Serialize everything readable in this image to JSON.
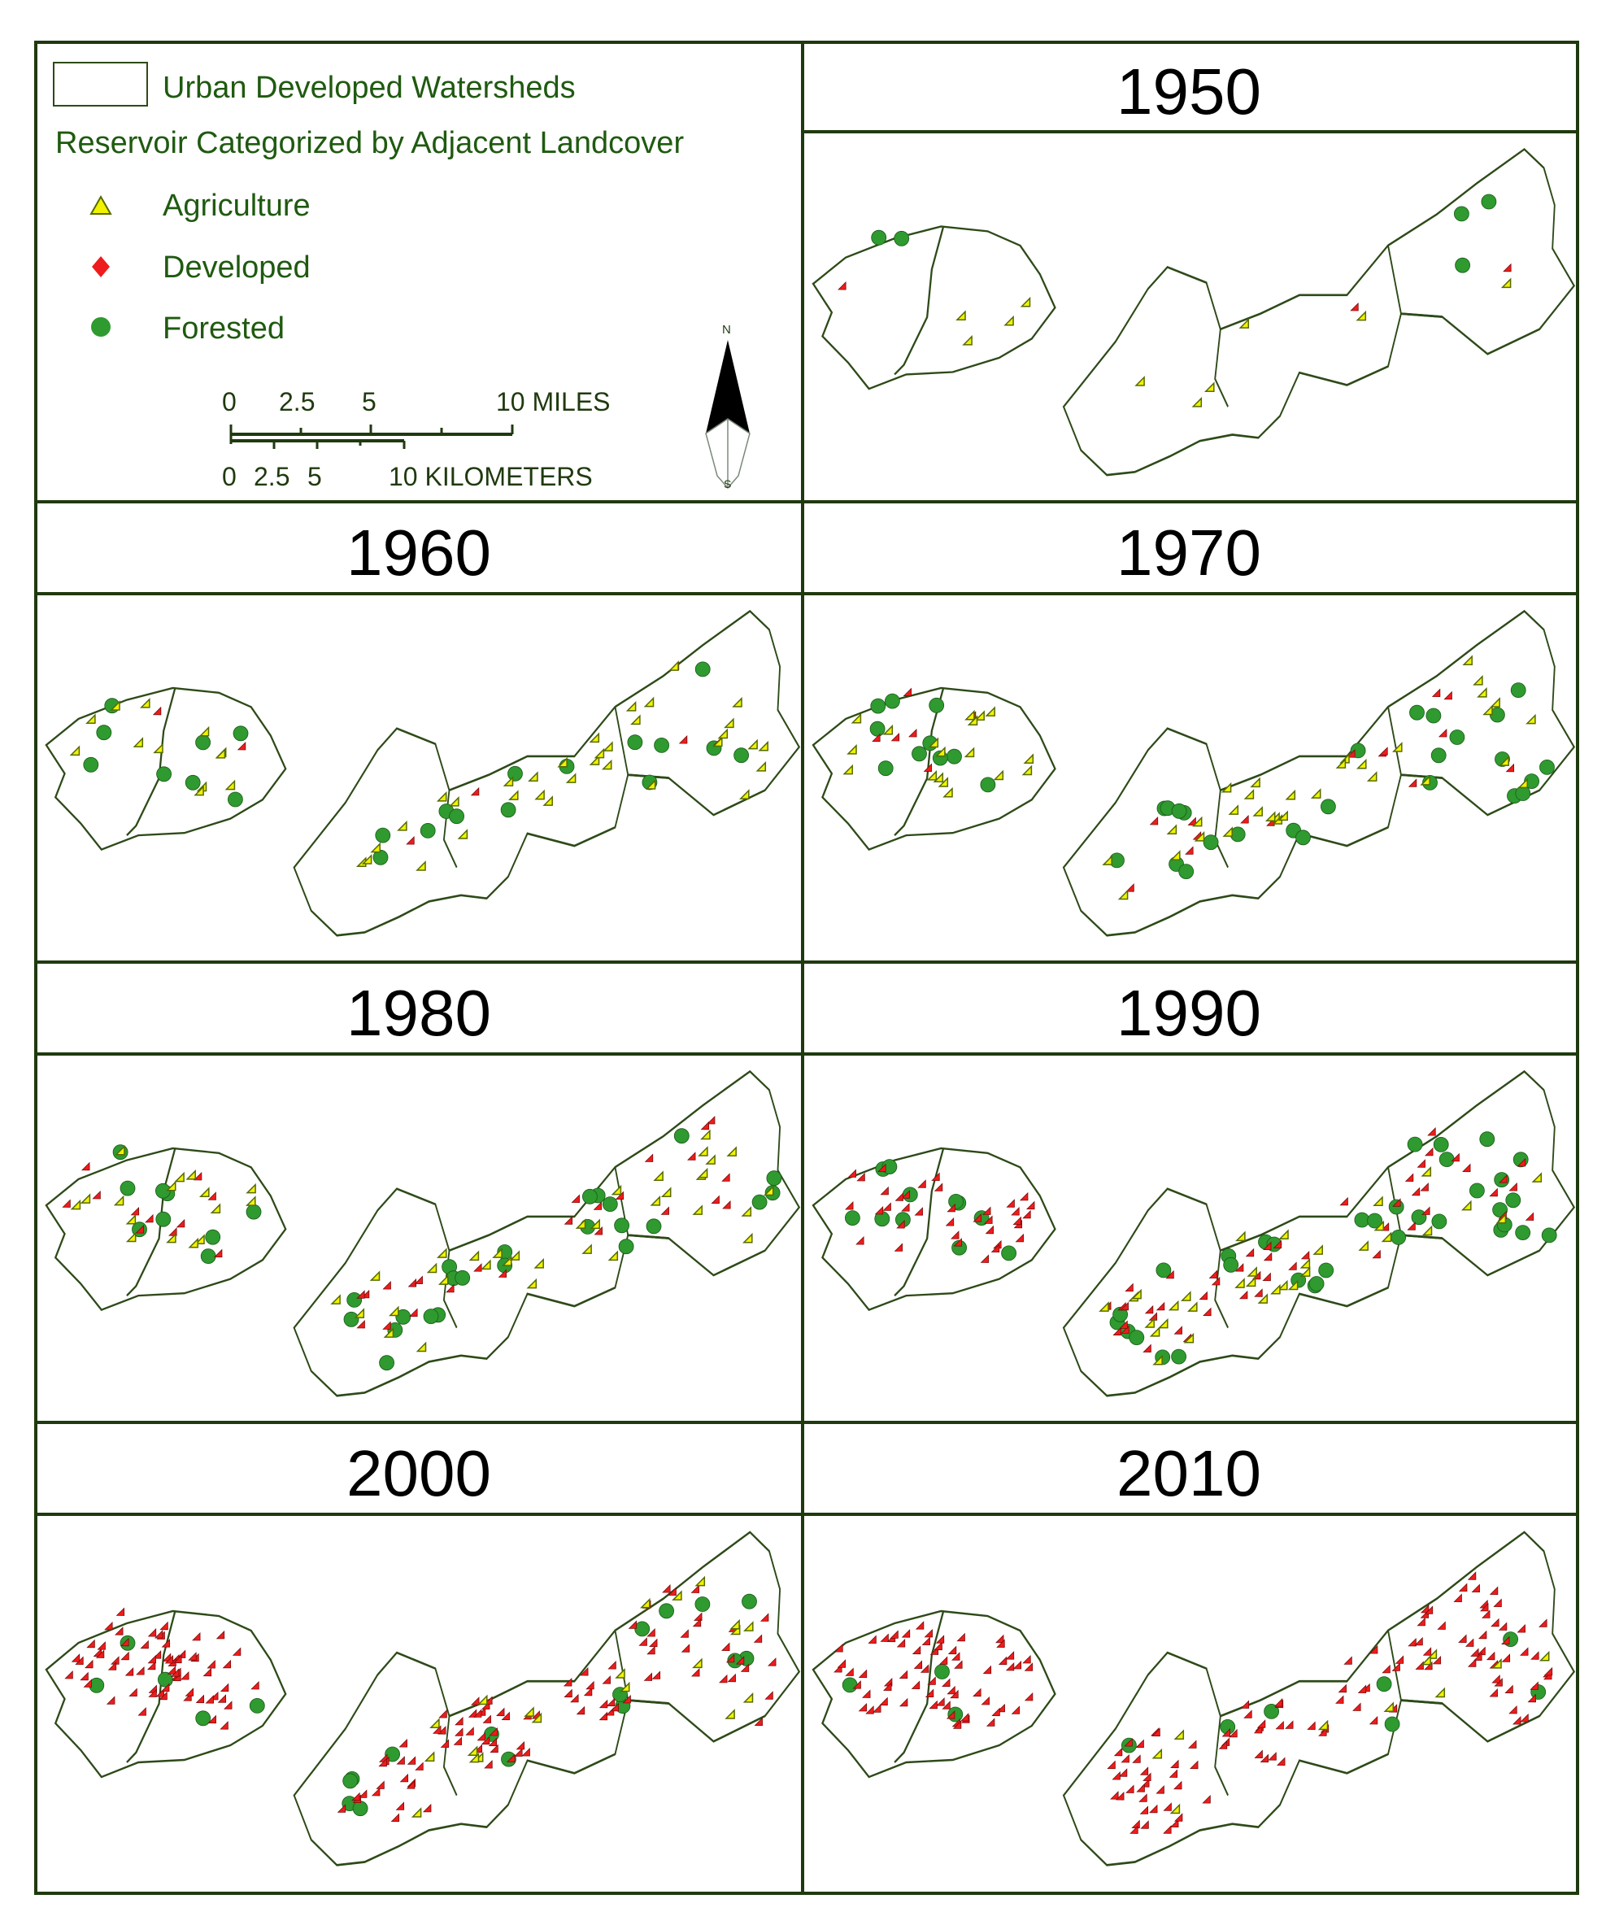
{
  "legend": {
    "watershed_label": "Urban Developed Watersheds",
    "reservoir_heading": "Reservoir Categorized by Adjacent Landcover",
    "categories": [
      {
        "label": "Agriculture",
        "symbol": "triangle",
        "color": "#f2f200"
      },
      {
        "label": "Developed",
        "symbol": "diamond",
        "color": "#ee1c1c"
      },
      {
        "label": "Forested",
        "symbol": "circle",
        "color": "#2f9a2f"
      }
    ],
    "miles_ticks": [
      "0",
      "2.5",
      "5",
      "10 MILES"
    ],
    "km_ticks": [
      "0",
      "2.5",
      "5",
      "10 KILOMETERS"
    ],
    "north_label": "N",
    "south_label": "S"
  },
  "panels": [
    {
      "year": "1950",
      "counts": {
        "agriculture": 10,
        "developed": 3,
        "forested": 5
      }
    },
    {
      "year": "1960",
      "counts": {
        "agriculture": 45,
        "developed": 7,
        "forested": 22
      }
    },
    {
      "year": "1970",
      "counts": {
        "agriculture": 50,
        "developed": 22,
        "forested": 35
      }
    },
    {
      "year": "1980",
      "counts": {
        "agriculture": 50,
        "developed": 35,
        "forested": 32
      }
    },
    {
      "year": "1990",
      "counts": {
        "agriculture": 32,
        "developed": 85,
        "forested": 45
      }
    },
    {
      "year": "2000",
      "counts": {
        "agriculture": 20,
        "developed": 160,
        "forested": 20
      }
    },
    {
      "year": "2010",
      "counts": {
        "agriculture": 10,
        "developed": 180,
        "forested": 10
      }
    }
  ],
  "colors": {
    "frame": "#1f3a0f",
    "outline": "#2d4a18",
    "title_text": "#000000",
    "legend_text": "#1f5a10"
  }
}
